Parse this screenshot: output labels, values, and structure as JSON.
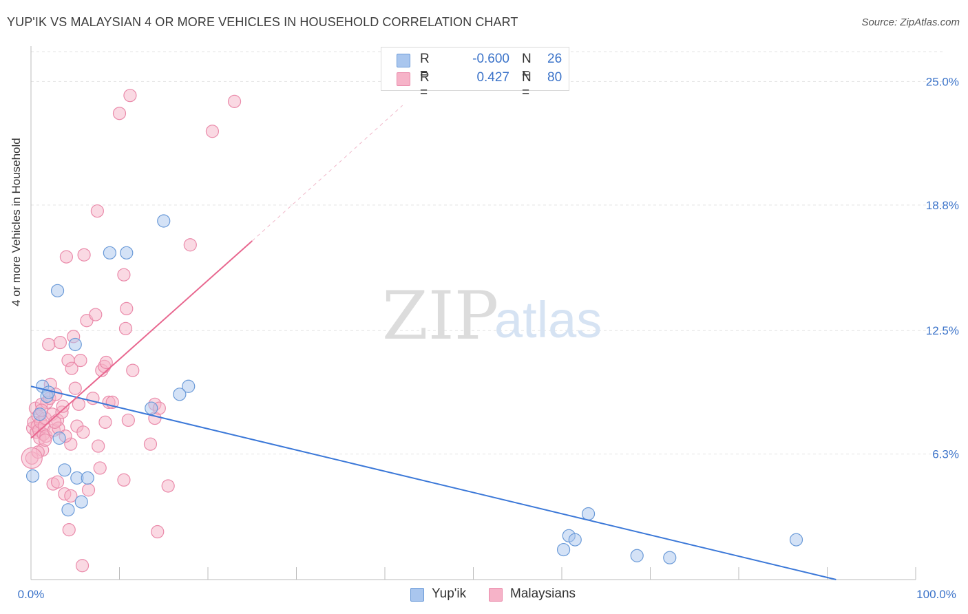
{
  "title": "YUP'IK VS MALAYSIAN 4 OR MORE VEHICLES IN HOUSEHOLD CORRELATION CHART",
  "source": "Source: ZipAtlas.com",
  "watermark": {
    "zip": "ZIP",
    "atlas": "atlas"
  },
  "legend_top": {
    "rows": [
      {
        "r_label": "R =",
        "r_value": "-0.600",
        "n_label": "N =",
        "n_value": "26"
      },
      {
        "r_label": "R =",
        "r_value": "0.427",
        "n_label": "N =",
        "n_value": "80"
      }
    ]
  },
  "colors": {
    "blue_fill": "#a9c6ee",
    "blue_stroke": "#6a9ad8",
    "blue_line": "#3b78d8",
    "pink_fill": "#f6b3c8",
    "pink_stroke": "#ea8aaa",
    "pink_line": "#e8678f",
    "axis_text": "#3b73c9",
    "grid": "#e3e3e3"
  },
  "chart_data": {
    "type": "scatter",
    "title": "YUP'IK VS MALAYSIAN 4 OR MORE VEHICLES IN HOUSEHOLD CORRELATION CHART",
    "xlabel": "",
    "ylabel": "4 or more Vehicles in Household",
    "xlim": [
      0,
      100
    ],
    "ylim": [
      0,
      26.5
    ],
    "x_tick_labels": [
      "0.0%",
      "100.0%"
    ],
    "y_ticks": [
      6.3,
      12.5,
      18.8,
      25.0
    ],
    "y_tick_labels": [
      "6.3%",
      "12.5%",
      "18.8%",
      "25.0%"
    ],
    "grid": true,
    "legend": "bottom-center",
    "series": [
      {
        "name": "Yup'ik",
        "r": -0.6,
        "n": 26,
        "points": [
          [
            0.2,
            5.2
          ],
          [
            1.0,
            8.3
          ],
          [
            1.3,
            9.7
          ],
          [
            1.8,
            9.2
          ],
          [
            2.0,
            9.4
          ],
          [
            3.0,
            14.5
          ],
          [
            3.2,
            7.1
          ],
          [
            3.8,
            5.5
          ],
          [
            4.2,
            3.5
          ],
          [
            5.0,
            11.8
          ],
          [
            5.2,
            5.1
          ],
          [
            5.7,
            3.9
          ],
          [
            6.4,
            5.1
          ],
          [
            8.9,
            16.4
          ],
          [
            10.8,
            16.4
          ],
          [
            13.6,
            8.6
          ],
          [
            15.0,
            18.0
          ],
          [
            16.8,
            9.3
          ],
          [
            17.8,
            9.7
          ],
          [
            63.0,
            3.3
          ],
          [
            60.2,
            1.5
          ],
          [
            60.8,
            2.2
          ],
          [
            61.5,
            2.0
          ],
          [
            68.5,
            1.2
          ],
          [
            72.2,
            1.1
          ],
          [
            86.5,
            2.0
          ]
        ],
        "trend": {
          "x0": 0,
          "y0": 9.7,
          "x1": 91,
          "y1": 0
        }
      },
      {
        "name": "Malaysians",
        "r": 0.427,
        "n": 80,
        "points": [
          [
            0.1,
            6.1
          ],
          [
            0.2,
            7.6
          ],
          [
            0.3,
            7.9
          ],
          [
            0.5,
            8.6
          ],
          [
            0.6,
            7.4
          ],
          [
            0.7,
            7.7
          ],
          [
            0.8,
            8.2
          ],
          [
            0.9,
            7.5
          ],
          [
            1.0,
            7.1
          ],
          [
            1.1,
            7.9
          ],
          [
            1.2,
            8.8
          ],
          [
            1.3,
            6.5
          ],
          [
            1.4,
            7.3
          ],
          [
            1.5,
            7.7
          ],
          [
            1.6,
            8.1
          ],
          [
            1.7,
            7.2
          ],
          [
            1.8,
            8.9
          ],
          [
            2.0,
            11.8
          ],
          [
            2.1,
            9.1
          ],
          [
            2.2,
            9.8
          ],
          [
            2.4,
            8.3
          ],
          [
            2.6,
            7.5
          ],
          [
            2.8,
            9.3
          ],
          [
            3.0,
            8.0
          ],
          [
            3.1,
            7.6
          ],
          [
            3.3,
            11.9
          ],
          [
            3.5,
            8.4
          ],
          [
            3.6,
            8.7
          ],
          [
            3.8,
            4.3
          ],
          [
            4.0,
            16.2
          ],
          [
            4.2,
            11.0
          ],
          [
            4.3,
            2.5
          ],
          [
            4.5,
            6.8
          ],
          [
            4.6,
            10.6
          ],
          [
            4.8,
            12.2
          ],
          [
            5.0,
            9.6
          ],
          [
            5.2,
            7.7
          ],
          [
            5.4,
            8.8
          ],
          [
            5.6,
            11.0
          ],
          [
            5.8,
            0.7
          ],
          [
            6.0,
            16.3
          ],
          [
            6.3,
            13.0
          ],
          [
            6.5,
            4.5
          ],
          [
            7.0,
            9.1
          ],
          [
            7.3,
            13.3
          ],
          [
            7.6,
            6.7
          ],
          [
            7.8,
            5.6
          ],
          [
            8.0,
            10.5
          ],
          [
            8.3,
            10.7
          ],
          [
            8.4,
            7.9
          ],
          [
            8.5,
            10.9
          ],
          [
            8.8,
            8.9
          ],
          [
            9.2,
            8.9
          ],
          [
            10.0,
            23.4
          ],
          [
            10.5,
            15.3
          ],
          [
            10.5,
            5.0
          ],
          [
            10.7,
            12.6
          ],
          [
            10.8,
            13.6
          ],
          [
            11.0,
            8.0
          ],
          [
            11.2,
            24.3
          ],
          [
            11.5,
            10.5
          ],
          [
            13.5,
            6.8
          ],
          [
            14.0,
            8.1
          ],
          [
            14.0,
            8.8
          ],
          [
            14.3,
            2.4
          ],
          [
            14.5,
            8.6
          ],
          [
            15.5,
            4.7
          ],
          [
            18.0,
            16.8
          ],
          [
            20.5,
            22.5
          ],
          [
            23.0,
            24.0
          ],
          [
            7.5,
            18.5
          ],
          [
            2.5,
            4.8
          ],
          [
            3.0,
            4.9
          ],
          [
            4.5,
            4.2
          ],
          [
            1.2,
            8.5
          ],
          [
            0.8,
            6.4
          ],
          [
            1.6,
            7.0
          ],
          [
            2.7,
            7.9
          ],
          [
            3.9,
            7.2
          ],
          [
            5.9,
            7.4
          ]
        ],
        "trend": {
          "x0": 0,
          "y0": 7.1,
          "x1": 25,
          "y1": 17.0,
          "dashed_to_x": 42,
          "dashed_to_y": 23.8
        }
      }
    ]
  },
  "legend_bottom": [
    "Yup'ik",
    "Malaysians"
  ]
}
